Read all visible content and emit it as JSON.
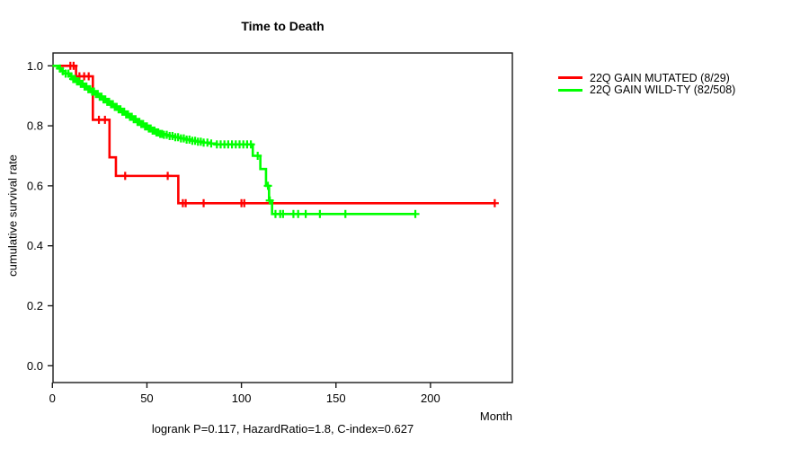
{
  "chart_data": {
    "type": "line",
    "subtype": "kaplan-meier-step-curve",
    "title": "Time to Death",
    "xlabel": "Month",
    "ylabel": "cumulative survival rate",
    "footer": "logrank P=0.117, HazardRatio=1.8, C-index=0.627",
    "xlim": [
      0,
      243
    ],
    "ylim": [
      0,
      1
    ],
    "grid": false,
    "legend_position": "right-top",
    "x_ticks": [
      {
        "v": 0,
        "label": "0"
      },
      {
        "v": 50,
        "label": "50"
      },
      {
        "v": 100,
        "label": "100"
      },
      {
        "v": 150,
        "label": "150"
      },
      {
        "v": 200,
        "label": "200"
      }
    ],
    "y_ticks": [
      {
        "v": 0.0,
        "label": "0.0"
      },
      {
        "v": 0.2,
        "label": "0.2"
      },
      {
        "v": 0.4,
        "label": "0.4"
      },
      {
        "v": 0.6,
        "label": "0.6"
      },
      {
        "v": 0.8,
        "label": "0.8"
      },
      {
        "v": 1.0,
        "label": "1.0"
      }
    ],
    "axis_color": "#1a1a1a",
    "series": [
      {
        "name": "22Q GAIN MUTATED (8/29)",
        "color": "#ff0000",
        "start": [
          0,
          1.0
        ],
        "steps": [
          [
            12.5,
            0.965
          ],
          [
            21.4,
            0.82
          ],
          [
            30.2,
            0.695
          ],
          [
            33.6,
            0.633
          ],
          [
            66.6,
            0.542
          ]
        ],
        "end_month": 234,
        "censor_months": [
          9.5,
          11.2,
          14.3,
          16.8,
          19.2,
          24.6,
          27.8,
          38.5,
          61,
          69,
          70.5,
          80,
          100,
          101.5,
          234
        ]
      },
      {
        "name": "22Q GAIN WILD-TY (82/508)",
        "color": "#00ff00",
        "start": [
          0,
          1.0
        ],
        "steps": [
          [
            3,
            0.991
          ],
          [
            5,
            0.982
          ],
          [
            7,
            0.974
          ],
          [
            9,
            0.965
          ],
          [
            11,
            0.956
          ],
          [
            13,
            0.948
          ],
          [
            15,
            0.94
          ],
          [
            17,
            0.931
          ],
          [
            19,
            0.922
          ],
          [
            21,
            0.914
          ],
          [
            23,
            0.906
          ],
          [
            25,
            0.897
          ],
          [
            27,
            0.888
          ],
          [
            29,
            0.88
          ],
          [
            31,
            0.872
          ],
          [
            33,
            0.863
          ],
          [
            35,
            0.855
          ],
          [
            37,
            0.847
          ],
          [
            39,
            0.838
          ],
          [
            41,
            0.83
          ],
          [
            43,
            0.822
          ],
          [
            45,
            0.813
          ],
          [
            47,
            0.806
          ],
          [
            49,
            0.798
          ],
          [
            51,
            0.791
          ],
          [
            53,
            0.784
          ],
          [
            55,
            0.778
          ],
          [
            57,
            0.773
          ],
          [
            59,
            0.77
          ],
          [
            62,
            0.766
          ],
          [
            65,
            0.762
          ],
          [
            68,
            0.758
          ],
          [
            71,
            0.754
          ],
          [
            74,
            0.75
          ],
          [
            77,
            0.747
          ],
          [
            80,
            0.744
          ],
          [
            83,
            0.741
          ],
          [
            86,
            0.738
          ],
          [
            106,
            0.7
          ],
          [
            110,
            0.656
          ],
          [
            113,
            0.6
          ],
          [
            114.6,
            0.551
          ],
          [
            116.2,
            0.506
          ]
        ],
        "end_month": 192,
        "censor_months": [
          4,
          5.5,
          7,
          8.5,
          10,
          11,
          12,
          13,
          14,
          15,
          16,
          17,
          18,
          19,
          20,
          21,
          22,
          23,
          24,
          25,
          26,
          27,
          28,
          29,
          30,
          31,
          32,
          33,
          34,
          35,
          36,
          37,
          38,
          39,
          40,
          41,
          42,
          43,
          44,
          45,
          46,
          47,
          48,
          49,
          50,
          51,
          52,
          53,
          54,
          55,
          56,
          57,
          58,
          59,
          60.5,
          62,
          63.5,
          65,
          66.5,
          68,
          69.5,
          71,
          72.5,
          74,
          75.5,
          77,
          78.5,
          80,
          82,
          84,
          87,
          89,
          91,
          93,
          95,
          97,
          99,
          101,
          103,
          105,
          108.6,
          114,
          115,
          118,
          120.5,
          122,
          127.5,
          130,
          134,
          141.5,
          155,
          192
        ]
      }
    ]
  }
}
